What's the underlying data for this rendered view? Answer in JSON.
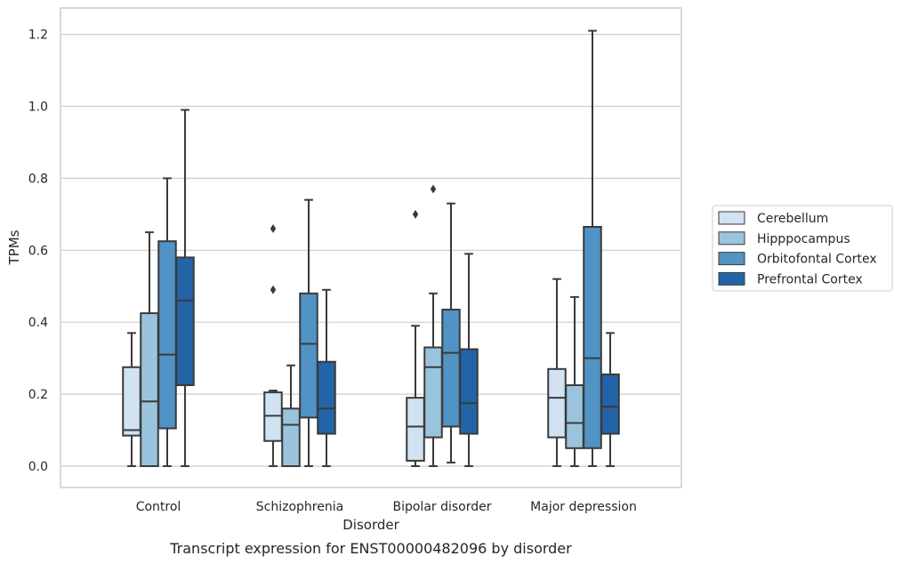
{
  "chart_data": {
    "type": "box",
    "xlabel": "Disorder",
    "ylabel": "TPMs",
    "caption": "Transcript expression for ENST00000482096 by disorder",
    "ylim": [
      -0.06,
      1.27
    ],
    "yticks": [
      0.0,
      0.2,
      0.4,
      0.6,
      0.8,
      1.0,
      1.2
    ],
    "ytick_labels": [
      "0.0",
      "0.2",
      "0.4",
      "0.6",
      "0.8",
      "1.0",
      "1.2"
    ],
    "grid": true,
    "legend_position": "right",
    "categories": [
      "Control",
      "Schizophrenia",
      "Bipolar disorder",
      "Major depression"
    ],
    "series": [
      {
        "name": "Cerebellum",
        "color": "#d1e2f2",
        "boxes": [
          {
            "whisker_low": 0.0,
            "q1": 0.085,
            "median": 0.1,
            "q3": 0.275,
            "whisker_high": 0.37,
            "outliers": []
          },
          {
            "whisker_low": 0.0,
            "q1": 0.07,
            "median": 0.14,
            "q3": 0.205,
            "whisker_high": 0.21,
            "outliers": [
              0.49,
              0.66
            ]
          },
          {
            "whisker_low": 0.0,
            "q1": 0.015,
            "median": 0.11,
            "q3": 0.19,
            "whisker_high": 0.39,
            "outliers": [
              0.7
            ]
          },
          {
            "whisker_low": 0.0,
            "q1": 0.08,
            "median": 0.19,
            "q3": 0.27,
            "whisker_high": 0.52,
            "outliers": []
          }
        ]
      },
      {
        "name": "Hipppocampus",
        "color": "#9ac4dd",
        "boxes": [
          {
            "whisker_low": 0.0,
            "q1": 0.0,
            "median": 0.18,
            "q3": 0.425,
            "whisker_high": 0.65,
            "outliers": []
          },
          {
            "whisker_low": 0.0,
            "q1": 0.0,
            "median": 0.115,
            "q3": 0.16,
            "whisker_high": 0.28,
            "outliers": []
          },
          {
            "whisker_low": 0.0,
            "q1": 0.08,
            "median": 0.275,
            "q3": 0.33,
            "whisker_high": 0.48,
            "outliers": [
              0.77
            ]
          },
          {
            "whisker_low": 0.0,
            "q1": 0.05,
            "median": 0.12,
            "q3": 0.225,
            "whisker_high": 0.47,
            "outliers": []
          }
        ]
      },
      {
        "name": "Orbitofontal Cortex",
        "color": "#5093c4",
        "boxes": [
          {
            "whisker_low": 0.0,
            "q1": 0.105,
            "median": 0.31,
            "q3": 0.625,
            "whisker_high": 0.8,
            "outliers": []
          },
          {
            "whisker_low": 0.0,
            "q1": 0.135,
            "median": 0.34,
            "q3": 0.48,
            "whisker_high": 0.74,
            "outliers": []
          },
          {
            "whisker_low": 0.01,
            "q1": 0.11,
            "median": 0.315,
            "q3": 0.435,
            "whisker_high": 0.73,
            "outliers": []
          },
          {
            "whisker_low": 0.0,
            "q1": 0.05,
            "median": 0.3,
            "q3": 0.665,
            "whisker_high": 1.21,
            "outliers": []
          }
        ]
      },
      {
        "name": "Prefrontal Cortex",
        "color": "#2364a7",
        "boxes": [
          {
            "whisker_low": 0.0,
            "q1": 0.225,
            "median": 0.46,
            "q3": 0.58,
            "whisker_high": 0.99,
            "outliers": []
          },
          {
            "whisker_low": 0.0,
            "q1": 0.09,
            "median": 0.16,
            "q3": 0.29,
            "whisker_high": 0.49,
            "outliers": []
          },
          {
            "whisker_low": 0.0,
            "q1": 0.09,
            "median": 0.175,
            "q3": 0.325,
            "whisker_high": 0.59,
            "outliers": []
          },
          {
            "whisker_low": 0.0,
            "q1": 0.09,
            "median": 0.165,
            "q3": 0.255,
            "whisker_high": 0.37,
            "outliers": []
          }
        ]
      }
    ]
  }
}
